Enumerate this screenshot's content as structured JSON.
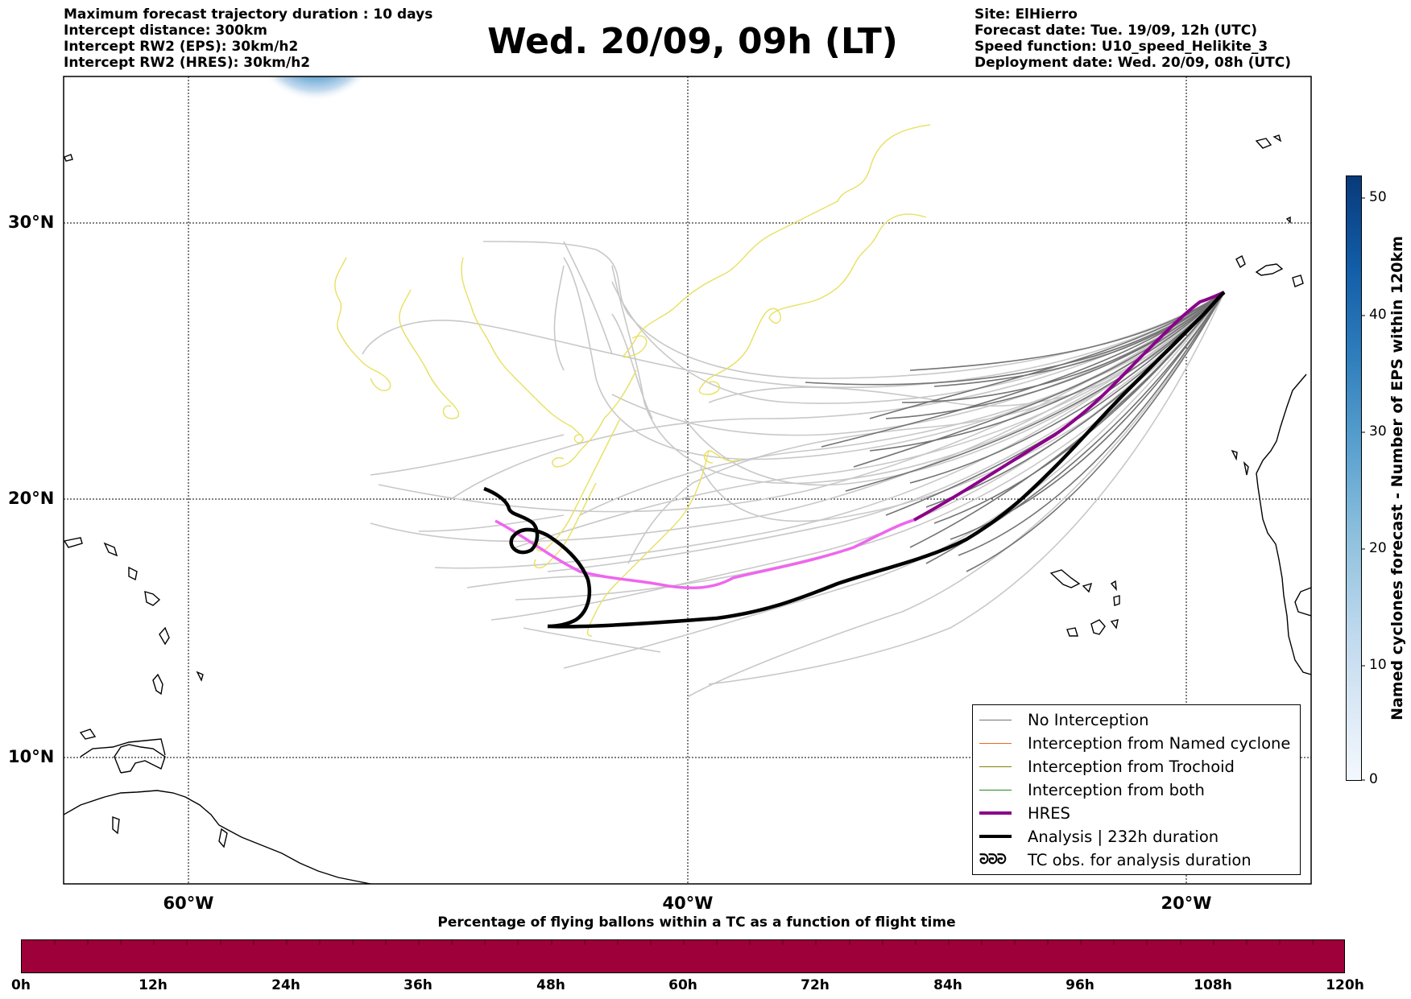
{
  "header_left": [
    "Maximum forecast trajectory duration : 10 days",
    "Intercept distance: 300km",
    "Intercept RW2 (EPS):  30km/h2",
    "Intercept RW2 (HRES): 30km/h2"
  ],
  "header_right": [
    "Site: ElHierro",
    "Forecast date: Tue. 19/09, 12h (UTC)",
    "Speed function: U10_speed_Helikite_3",
    "Deployment date: Wed. 20/09, 08h (UTC)"
  ],
  "title": "Wed. 20/09, 09h (LT)",
  "map": {
    "lat_labels": [
      "30°N",
      "20°N",
      "10°N"
    ],
    "lon_labels": [
      "60°W",
      "40°W",
      "20°W"
    ],
    "colors": {
      "no_interception": "#737373",
      "ensemble_light": "#c8c8c8",
      "named_cyclone": "#f26522",
      "trochoid": "#808000",
      "both": "#228b22",
      "hres": "#8b008b",
      "hres_light": "#ee66ee",
      "analysis": "#000000",
      "trochoid_tracks": "#e8e060"
    }
  },
  "legend": {
    "items": [
      {
        "label": "No Interception",
        "color": "#737373",
        "style": "thin"
      },
      {
        "label": "Interception from Named cyclone",
        "color": "#f26522",
        "style": "thin"
      },
      {
        "label": "Interception from Trochoid",
        "color": "#808000",
        "style": "thin"
      },
      {
        "label": "Interception from both",
        "color": "#228b22",
        "style": "thin"
      },
      {
        "label": "HRES",
        "color": "#8b008b",
        "style": "thick"
      },
      {
        "label": "Analysis | 232h duration",
        "color": "#000000",
        "style": "thick"
      },
      {
        "label": "TC obs. for analysis duration",
        "color": "#000000",
        "style": "symbol",
        "symbol": "ᘒᘒᘒ"
      }
    ]
  },
  "colorbar_right": {
    "ticks": [
      "50",
      "40",
      "30",
      "20",
      "10",
      "0"
    ],
    "label": "Named cyclones forecast - Number of EPS within 120km"
  },
  "colorbar_bottom": {
    "title": "Percentage of flying ballons within a TC as a function of flight time",
    "ticks": [
      "0h",
      "12h",
      "24h",
      "36h",
      "48h",
      "60h",
      "72h",
      "84h",
      "96h",
      "108h",
      "120h"
    ],
    "color": "#9e0039"
  }
}
